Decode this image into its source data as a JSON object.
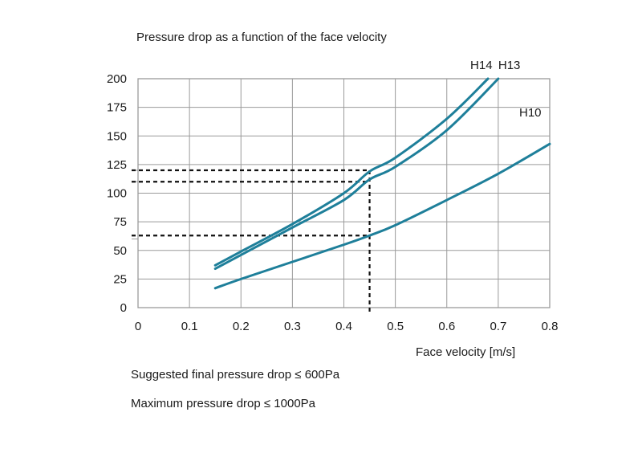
{
  "chart_data": {
    "type": "line",
    "title": "Pressure drop as a function of the face velocity",
    "xlabel": "Face velocity [m/s]",
    "ylabel": "",
    "xlim": [
      0,
      0.8
    ],
    "ylim": [
      0,
      200
    ],
    "xticks": [
      "0",
      "0.1",
      "0.2",
      "0.3",
      "0.4",
      "0.5",
      "0.6",
      "0.7",
      "0.8"
    ],
    "yticks": [
      "0",
      "25",
      "50",
      "75",
      "100",
      "125",
      "150",
      "175",
      "200"
    ],
    "extra_yticks": [
      "110",
      "120",
      "60"
    ],
    "grid": true,
    "legend": "curve labels",
    "series": [
      {
        "name": "H14",
        "x": [
          0.15,
          0.2,
          0.3,
          0.4,
          0.45,
          0.5,
          0.6,
          0.68
        ],
        "y": [
          37,
          49,
          73,
          100,
          119,
          131,
          165,
          200
        ]
      },
      {
        "name": "H13",
        "x": [
          0.15,
          0.2,
          0.3,
          0.4,
          0.45,
          0.5,
          0.6,
          0.7
        ],
        "y": [
          34,
          46,
          70,
          94,
          112,
          123,
          155,
          200
        ]
      },
      {
        "name": "H10",
        "x": [
          0.15,
          0.2,
          0.3,
          0.4,
          0.45,
          0.5,
          0.6,
          0.7,
          0.8
        ],
        "y": [
          17,
          25,
          40,
          55,
          63,
          72,
          94,
          117,
          143
        ]
      }
    ],
    "reference_lines": {
      "x": 0.45,
      "y_values": [
        120,
        110,
        63
      ]
    },
    "colors": {
      "curve": "#1e7f9a",
      "grid": "#9a9a9a",
      "reference": "#111111"
    }
  },
  "notes": {
    "line1": "Suggested final pressure drop ≤ 600Pa",
    "line2": "Maximum pressure drop ≤ 1000Pa"
  }
}
